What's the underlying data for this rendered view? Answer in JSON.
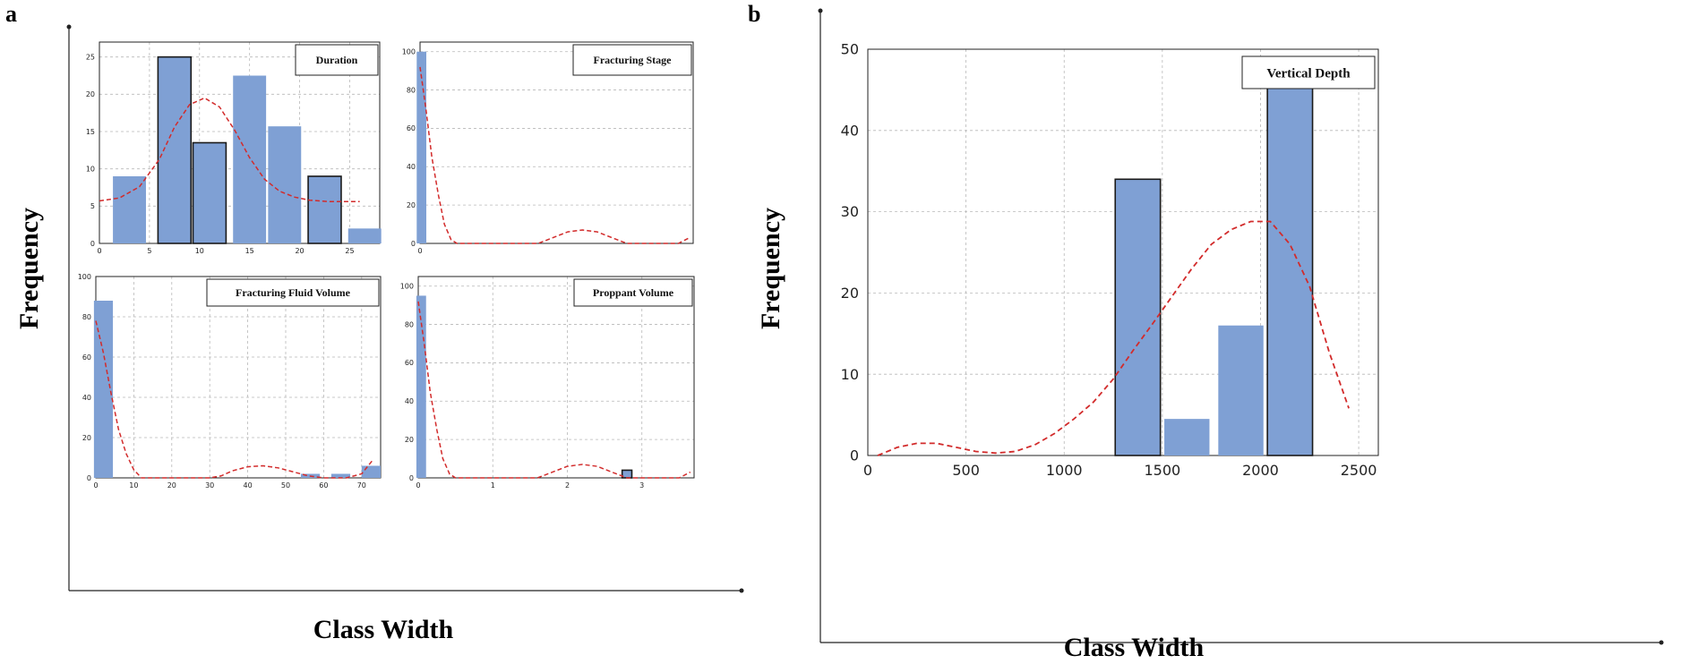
{
  "figure": {
    "panel_a_letter": "a",
    "panel_b_letter": "b",
    "panel_a_ylabel": "Frequency",
    "panel_a_xlabel": "Class Width",
    "panel_b_ylabel": "Frequency",
    "panel_b_xlabel": "Class Width"
  },
  "colors": {
    "bar_fill": "#7fa0d4",
    "bar_edge": "#1a1a1a",
    "density": "#d22b2b",
    "grid": "#b8b8b8",
    "axis": "#222222"
  },
  "chart_data": [
    {
      "type": "bar",
      "legend": "Duration",
      "legend_position": "top-right",
      "x": [
        3,
        7.5,
        11,
        15,
        18.5,
        22.5,
        26.5
      ],
      "bar_width": 3.3,
      "values": [
        9,
        25,
        13.5,
        22.5,
        15.7,
        9,
        2
      ],
      "outlined": [
        false,
        true,
        true,
        false,
        false,
        true,
        false
      ],
      "xlim": [
        0,
        28
      ],
      "ylim": [
        0,
        27
      ],
      "xticks": [
        0,
        5,
        10,
        15,
        20,
        25
      ],
      "yticks": [
        0,
        5,
        10,
        15,
        20,
        25
      ],
      "grid": "on",
      "density_curve": [
        [
          0,
          5.7
        ],
        [
          2,
          6.1
        ],
        [
          4,
          7.6
        ],
        [
          6,
          11.3
        ],
        [
          7.5,
          15.6
        ],
        [
          9,
          18.6
        ],
        [
          10.5,
          19.5
        ],
        [
          12,
          18.3
        ],
        [
          13.5,
          15.2
        ],
        [
          15,
          11.5
        ],
        [
          16.5,
          8.6
        ],
        [
          18,
          7
        ],
        [
          19.5,
          6.2
        ],
        [
          21,
          5.8
        ],
        [
          23,
          5.6
        ],
        [
          26,
          5.6
        ]
      ]
    },
    {
      "type": "bar",
      "legend": "Fracturing Stage",
      "legend_position": "top-right",
      "x": [
        0.02
      ],
      "bar_width": 0.13,
      "values": [
        100
      ],
      "outlined": [
        false
      ],
      "xlim": [
        0,
        3.7
      ],
      "ylim": [
        0,
        105
      ],
      "xticks": [
        0
      ],
      "yticks": [
        0,
        20,
        40,
        60,
        80,
        100
      ],
      "grid": "on",
      "density_curve": [
        [
          0,
          92
        ],
        [
          0.08,
          70
        ],
        [
          0.16,
          45
        ],
        [
          0.25,
          25
        ],
        [
          0.33,
          10
        ],
        [
          0.42,
          2
        ],
        [
          0.5,
          0
        ],
        [
          0.8,
          0
        ],
        [
          1.2,
          0
        ],
        [
          1.6,
          0
        ],
        [
          1.8,
          3
        ],
        [
          2,
          6
        ],
        [
          2.2,
          7
        ],
        [
          2.4,
          6
        ],
        [
          2.6,
          3
        ],
        [
          2.8,
          0
        ],
        [
          3.2,
          0
        ],
        [
          3.5,
          0
        ],
        [
          3.65,
          3
        ]
      ]
    },
    {
      "type": "bar",
      "legend": "Fracturing Fluid Volume",
      "legend_position": "top-right",
      "x": [
        2,
        56.5,
        64.5,
        72.5
      ],
      "bar_width": 5,
      "values": [
        88,
        2,
        2,
        6
      ],
      "outlined": [
        false,
        false,
        false,
        false
      ],
      "xlim": [
        0,
        75
      ],
      "ylim": [
        0,
        100
      ],
      "xticks": [
        0,
        10,
        20,
        30,
        40,
        50,
        60,
        70
      ],
      "yticks": [
        0,
        20,
        40,
        60,
        80,
        100
      ],
      "grid": "on",
      "density_curve": [
        [
          0,
          78
        ],
        [
          2,
          62
        ],
        [
          4,
          42
        ],
        [
          6,
          24
        ],
        [
          8,
          12
        ],
        [
          10,
          4
        ],
        [
          12,
          0
        ],
        [
          20,
          0
        ],
        [
          30,
          0
        ],
        [
          33,
          1
        ],
        [
          36,
          3.5
        ],
        [
          40,
          5.5
        ],
        [
          44,
          6
        ],
        [
          48,
          5
        ],
        [
          52,
          3
        ],
        [
          56,
          1
        ],
        [
          60,
          0
        ],
        [
          66,
          0
        ],
        [
          70,
          2
        ],
        [
          73,
          9
        ]
      ]
    },
    {
      "type": "bar",
      "legend": "Proppant Volume",
      "legend_position": "top-right",
      "x": [
        0.04,
        2.8
      ],
      "bar_width": 0.13,
      "values": [
        95,
        4
      ],
      "outlined": [
        false,
        true
      ],
      "xlim": [
        0,
        3.7
      ],
      "ylim": [
        0,
        105
      ],
      "xticks": [
        0,
        1,
        2,
        3
      ],
      "yticks": [
        0,
        20,
        40,
        60,
        80,
        100
      ],
      "grid": "on",
      "density_curve": [
        [
          0,
          92
        ],
        [
          0.08,
          70
        ],
        [
          0.16,
          45
        ],
        [
          0.25,
          25
        ],
        [
          0.33,
          10
        ],
        [
          0.42,
          2
        ],
        [
          0.5,
          0
        ],
        [
          0.8,
          0
        ],
        [
          1.2,
          0
        ],
        [
          1.6,
          0
        ],
        [
          1.8,
          3
        ],
        [
          2,
          6
        ],
        [
          2.2,
          7
        ],
        [
          2.4,
          6
        ],
        [
          2.6,
          3
        ],
        [
          2.8,
          0
        ],
        [
          3.2,
          0
        ],
        [
          3.5,
          0
        ],
        [
          3.65,
          3
        ]
      ]
    },
    {
      "type": "bar",
      "legend": "Vertical Depth",
      "legend_position": "top-right",
      "x": [
        1375,
        1625,
        1900,
        2150
      ],
      "bar_width": 230,
      "values": [
        34,
        4.5,
        16,
        45.5
      ],
      "outlined": [
        true,
        false,
        false,
        true
      ],
      "xlim": [
        0,
        2600
      ],
      "ylim": [
        0,
        50
      ],
      "xticks": [
        0,
        500,
        1000,
        1500,
        2000,
        2500
      ],
      "yticks": [
        0,
        10,
        20,
        30,
        40,
        50
      ],
      "grid": "on",
      "density_curve": [
        [
          50,
          0
        ],
        [
          150,
          1
        ],
        [
          250,
          1.5
        ],
        [
          350,
          1.5
        ],
        [
          450,
          1
        ],
        [
          550,
          0.5
        ],
        [
          650,
          0.3
        ],
        [
          750,
          0.5
        ],
        [
          850,
          1.3
        ],
        [
          950,
          2.7
        ],
        [
          1050,
          4.5
        ],
        [
          1150,
          6.6
        ],
        [
          1250,
          9.4
        ],
        [
          1350,
          12.9
        ],
        [
          1450,
          16.2
        ],
        [
          1550,
          19.6
        ],
        [
          1650,
          23
        ],
        [
          1750,
          26
        ],
        [
          1850,
          27.8
        ],
        [
          1950,
          28.8
        ],
        [
          2050,
          28.8
        ],
        [
          2150,
          26
        ],
        [
          2250,
          20.8
        ],
        [
          2350,
          12.7
        ],
        [
          2450,
          5.8
        ]
      ]
    }
  ]
}
